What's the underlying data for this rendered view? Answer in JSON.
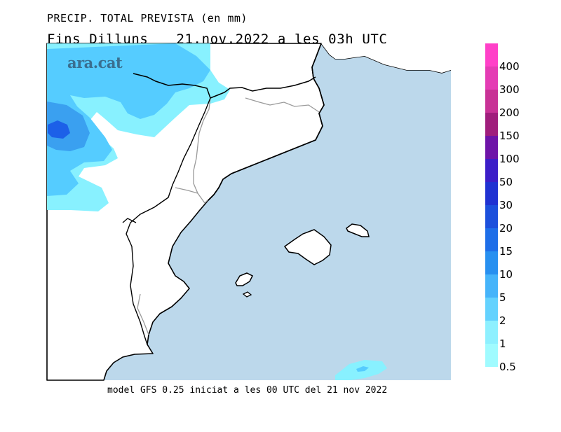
{
  "title_line1": "PRECIP. TOTAL PREVISTA (en mm)",
  "title_day": "Fins Dilluns",
  "title_date": "21.nov.2022 a les 03h UTC",
  "footer": "model GFS 0.25 iniciat a les 00 UTC del 21 nov 2022",
  "logo": "ara.cat",
  "colors": {
    "sea": "#bcd8eb",
    "land": "#ffffff",
    "coast": "#000000",
    "border": "#9a9a9a",
    "precip_light": "#88f1ff",
    "precip_mid": "#55ccff",
    "precip_dark": "#3aa0f0",
    "precip_core": "#1c60e8"
  },
  "legend": {
    "labels": [
      "400",
      "300",
      "200",
      "150",
      "100",
      "50",
      "30",
      "20",
      "15",
      "10",
      "5",
      "2",
      "1",
      "0.5"
    ],
    "colors": [
      "#ff40c8",
      "#e43cb4",
      "#c83296",
      "#a01e7c",
      "#6e14a8",
      "#3c1ec8",
      "#2032d2",
      "#1c50dc",
      "#1e6ee8",
      "#2890f0",
      "#46b4fa",
      "#64d2fe",
      "#8ef0ff",
      "#a0fbff"
    ]
  }
}
